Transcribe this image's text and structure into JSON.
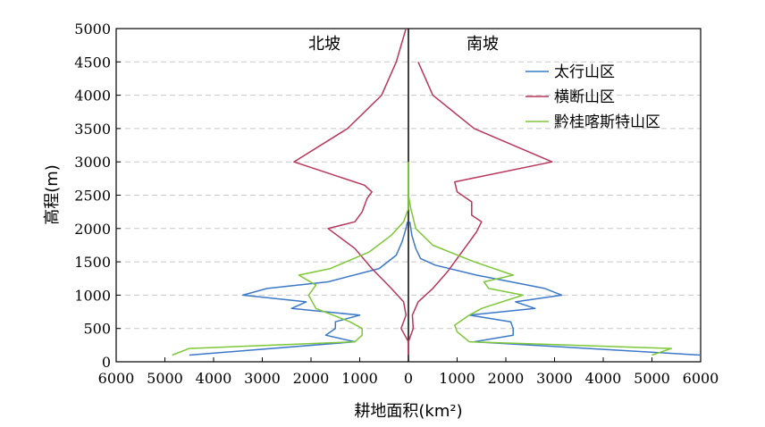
{
  "chart_data": {
    "type": "line",
    "xlabel": "耕地面积(km²)",
    "ylabel": "高程(m)",
    "xlim": [
      -6000,
      6000
    ],
    "ylim": [
      0,
      5000
    ],
    "x_ticks": [
      -6000,
      -5000,
      -4000,
      -3000,
      -2000,
      -1000,
      0,
      1000,
      2000,
      3000,
      4000,
      5000,
      6000
    ],
    "x_tick_labels": [
      "6000",
      "5000",
      "4000",
      "3000",
      "2000",
      "1000",
      "0",
      "1000",
      "2000",
      "3000",
      "4000",
      "5000",
      "6000"
    ],
    "y_ticks": [
      0,
      500,
      1000,
      1500,
      2000,
      2500,
      3000,
      3500,
      4000,
      4500,
      5000
    ],
    "y_tick_labels": [
      "0",
      "500",
      "1000",
      "1500",
      "2000",
      "2500",
      "3000",
      "3500",
      "4000",
      "4500",
      "5000"
    ],
    "grid": "horizontal-dashed",
    "side_labels": {
      "left": "北坡",
      "right": "南坡"
    },
    "legend_position": "top-right",
    "series": [
      {
        "name": "太行山区",
        "color": "#3b78c8",
        "north": [
          [
            -4500,
            100
          ],
          [
            -1100,
            300
          ],
          [
            -1700,
            400
          ],
          [
            -1500,
            500
          ],
          [
            -1500,
            600
          ],
          [
            -1000,
            700
          ],
          [
            -2400,
            800
          ],
          [
            -2100,
            900
          ],
          [
            -3400,
            1000
          ],
          [
            -2900,
            1100
          ],
          [
            -1650,
            1200
          ],
          [
            -600,
            1400
          ],
          [
            -250,
            1600
          ],
          [
            -130,
            1800
          ],
          [
            -50,
            2000
          ],
          [
            -20,
            2100
          ]
        ],
        "south": [
          [
            6000,
            100
          ],
          [
            1350,
            300
          ],
          [
            2150,
            400
          ],
          [
            2150,
            500
          ],
          [
            2100,
            600
          ],
          [
            1250,
            700
          ],
          [
            2600,
            800
          ],
          [
            2200,
            900
          ],
          [
            3150,
            1000
          ],
          [
            2800,
            1100
          ],
          [
            1400,
            1300
          ],
          [
            550,
            1450
          ],
          [
            250,
            1550
          ],
          [
            150,
            1700
          ],
          [
            70,
            1900
          ],
          [
            30,
            2100
          ]
        ]
      },
      {
        "name": "横断山区",
        "color": "#b8365a",
        "north": [
          [
            0,
            100
          ],
          [
            0,
            300
          ],
          [
            -150,
            500
          ],
          [
            -50,
            700
          ],
          [
            -100,
            900
          ],
          [
            -350,
            1100
          ],
          [
            -750,
            1400
          ],
          [
            -1100,
            1700
          ],
          [
            -1650,
            2000
          ],
          [
            -1100,
            2100
          ],
          [
            -950,
            2250
          ],
          [
            -850,
            2450
          ],
          [
            -750,
            2550
          ],
          [
            -900,
            2650
          ],
          [
            -2350,
            3000
          ],
          [
            -1250,
            3500
          ],
          [
            -550,
            4000
          ],
          [
            -250,
            4500
          ],
          [
            -50,
            5000
          ]
        ],
        "south": [
          [
            0,
            100
          ],
          [
            0,
            300
          ],
          [
            100,
            500
          ],
          [
            80,
            700
          ],
          [
            200,
            900
          ],
          [
            500,
            1100
          ],
          [
            800,
            1350
          ],
          [
            1150,
            1700
          ],
          [
            1400,
            1950
          ],
          [
            1500,
            2100
          ],
          [
            1300,
            2200
          ],
          [
            1300,
            2400
          ],
          [
            1000,
            2550
          ],
          [
            950,
            2700
          ],
          [
            2950,
            3000
          ],
          [
            1350,
            3500
          ],
          [
            500,
            4000
          ],
          [
            200,
            4500
          ]
        ]
      },
      {
        "name": "黔桂喀斯特山区",
        "color": "#7dc738",
        "north": [
          [
            -4850,
            100
          ],
          [
            -4500,
            200
          ],
          [
            -1100,
            300
          ],
          [
            -950,
            400
          ],
          [
            -950,
            500
          ],
          [
            -1200,
            600
          ],
          [
            -1900,
            800
          ],
          [
            -2050,
            1000
          ],
          [
            -1900,
            1150
          ],
          [
            -2250,
            1300
          ],
          [
            -1600,
            1400
          ],
          [
            -800,
            1650
          ],
          [
            -350,
            1900
          ],
          [
            -100,
            2100
          ],
          [
            0,
            2300
          ],
          [
            0,
            2500
          ],
          [
            0,
            3000
          ]
        ],
        "south": [
          [
            5000,
            100
          ],
          [
            5400,
            200
          ],
          [
            1250,
            300
          ],
          [
            1000,
            450
          ],
          [
            950,
            550
          ],
          [
            1250,
            700
          ],
          [
            1500,
            800
          ],
          [
            2350,
            1000
          ],
          [
            1650,
            1100
          ],
          [
            1550,
            1200
          ],
          [
            2150,
            1300
          ],
          [
            1350,
            1500
          ],
          [
            500,
            1750
          ],
          [
            150,
            2000
          ],
          [
            50,
            2300
          ],
          [
            0,
            2500
          ],
          [
            0,
            3000
          ]
        ]
      }
    ]
  }
}
